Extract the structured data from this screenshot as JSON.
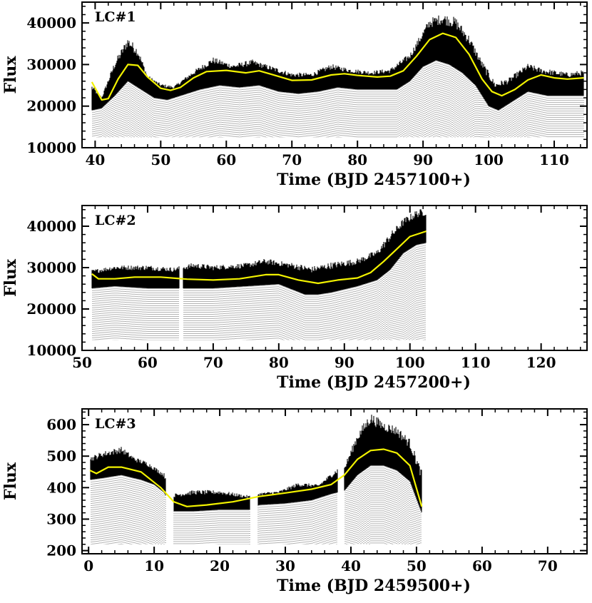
{
  "chart_data": [
    {
      "type": "scatter",
      "label": "LC#1",
      "xlabel": "Time (BJD 2457100+)",
      "ylabel": "Flux",
      "xlim": [
        38,
        115
      ],
      "ylim": [
        10000,
        45000
      ],
      "xticks": [
        40,
        50,
        60,
        70,
        80,
        90,
        100,
        110
      ],
      "yticks": [
        10000,
        20000,
        30000,
        40000
      ],
      "tick_labels_x": [
        "40",
        "50",
        "60",
        "70",
        "80",
        "90",
        "100",
        "110"
      ],
      "tick_labels_y": [
        "10000",
        "20000",
        "30000",
        "40000"
      ],
      "data_range": [
        39.5,
        114.5
      ],
      "gaps": [],
      "floor": 12500,
      "envelope_top": [
        [
          39.5,
          24500
        ],
        [
          41,
          22000
        ],
        [
          43,
          30000
        ],
        [
          45,
          35500
        ],
        [
          46.5,
          33000
        ],
        [
          48,
          27000
        ],
        [
          50,
          25000
        ],
        [
          52,
          24500
        ],
        [
          55,
          28000
        ],
        [
          58,
          31000
        ],
        [
          61,
          29500
        ],
        [
          64,
          30500
        ],
        [
          67,
          29000
        ],
        [
          70,
          27500
        ],
        [
          73,
          27500
        ],
        [
          76,
          29500
        ],
        [
          79,
          28500
        ],
        [
          82,
          28000
        ],
        [
          85,
          28500
        ],
        [
          88,
          32000
        ],
        [
          91,
          40000
        ],
        [
          93,
          41000
        ],
        [
          95,
          40000
        ],
        [
          97,
          36000
        ],
        [
          99,
          30000
        ],
        [
          101,
          25000
        ],
        [
          103,
          26000
        ],
        [
          106,
          29500
        ],
        [
          108,
          28500
        ],
        [
          110,
          28000
        ],
        [
          112,
          27500
        ],
        [
          114.5,
          28000
        ]
      ],
      "envelope_bottom": [
        [
          39.5,
          19000
        ],
        [
          41,
          19500
        ],
        [
          43,
          22500
        ],
        [
          45,
          26000
        ],
        [
          47,
          24000
        ],
        [
          49,
          22000
        ],
        [
          51,
          21500
        ],
        [
          53,
          22500
        ],
        [
          56,
          24000
        ],
        [
          59,
          25000
        ],
        [
          62,
          24500
        ],
        [
          65,
          25000
        ],
        [
          68,
          23500
        ],
        [
          71,
          23000
        ],
        [
          74,
          23500
        ],
        [
          77,
          24500
        ],
        [
          80,
          24000
        ],
        [
          83,
          24000
        ],
        [
          86,
          24000
        ],
        [
          88,
          26000
        ],
        [
          90,
          29500
        ],
        [
          92,
          31000
        ],
        [
          94,
          30000
        ],
        [
          96,
          28000
        ],
        [
          98,
          25000
        ],
        [
          100,
          20000
        ],
        [
          101.5,
          19000
        ],
        [
          103,
          20500
        ],
        [
          106,
          23500
        ],
        [
          109,
          22500
        ],
        [
          112,
          22500
        ],
        [
          114.5,
          22500
        ]
      ],
      "fit": [
        [
          39.5,
          25800
        ],
        [
          41,
          21500
        ],
        [
          42,
          21800
        ],
        [
          43.5,
          26500
        ],
        [
          45,
          30000
        ],
        [
          46.5,
          29800
        ],
        [
          48,
          27000
        ],
        [
          50,
          24300
        ],
        [
          51.5,
          23800
        ],
        [
          53,
          24500
        ],
        [
          55,
          26800
        ],
        [
          57,
          28300
        ],
        [
          60,
          28600
        ],
        [
          63,
          28000
        ],
        [
          65,
          28500
        ],
        [
          67,
          27600
        ],
        [
          70,
          26200
        ],
        [
          73,
          26300
        ],
        [
          76,
          27500
        ],
        [
          78,
          27800
        ],
        [
          80,
          27400
        ],
        [
          83,
          27000
        ],
        [
          85,
          27200
        ],
        [
          87,
          28500
        ],
        [
          89,
          32000
        ],
        [
          91,
          36000
        ],
        [
          93,
          37500
        ],
        [
          95,
          36500
        ],
        [
          97,
          32500
        ],
        [
          99,
          26500
        ],
        [
          100.5,
          23500
        ],
        [
          102,
          22500
        ],
        [
          104,
          24000
        ],
        [
          106,
          26300
        ],
        [
          108,
          27500
        ],
        [
          110,
          26800
        ],
        [
          112,
          26500
        ],
        [
          114.5,
          26800
        ]
      ]
    },
    {
      "type": "scatter",
      "label": "LC#2",
      "xlabel": "Time (BJD 2457200+)",
      "ylabel": "Flux",
      "xlim": [
        50,
        127
      ],
      "ylim": [
        10000,
        45000
      ],
      "xticks": [
        50,
        60,
        70,
        80,
        90,
        100,
        110,
        120
      ],
      "yticks": [
        10000,
        20000,
        30000,
        40000
      ],
      "tick_labels_x": [
        "50",
        "60",
        "70",
        "80",
        "90",
        "100",
        "110",
        "120"
      ],
      "tick_labels_y": [
        "10000",
        "20000",
        "30000",
        "40000"
      ],
      "data_range": [
        51.5,
        102.5
      ],
      "gaps": [
        [
          64.8,
          65.4
        ]
      ],
      "floor": 12500,
      "envelope_top": [
        [
          51.5,
          29000
        ],
        [
          55,
          30000
        ],
        [
          60,
          30000
        ],
        [
          64,
          29500
        ],
        [
          67,
          30500
        ],
        [
          70,
          30000
        ],
        [
          75,
          30500
        ],
        [
          78,
          31500
        ],
        [
          82,
          30500
        ],
        [
          85,
          29500
        ],
        [
          88,
          30500
        ],
        [
          92,
          31500
        ],
        [
          95,
          33500
        ],
        [
          97,
          37500
        ],
        [
          99,
          41000
        ],
        [
          101,
          43000
        ],
        [
          102.5,
          43500
        ]
      ],
      "envelope_bottom": [
        [
          51.5,
          25000
        ],
        [
          55,
          25500
        ],
        [
          60,
          25000
        ],
        [
          65,
          25000
        ],
        [
          70,
          25000
        ],
        [
          75,
          25500
        ],
        [
          80,
          26000
        ],
        [
          84,
          23500
        ],
        [
          86,
          23500
        ],
        [
          88,
          24000
        ],
        [
          92,
          25500
        ],
        [
          95,
          27000
        ],
        [
          97,
          29500
        ],
        [
          99,
          33500
        ],
        [
          101,
          35500
        ],
        [
          102.5,
          36000
        ]
      ],
      "fit": [
        [
          51.5,
          28500
        ],
        [
          52.5,
          27300
        ],
        [
          55,
          27300
        ],
        [
          58,
          27700
        ],
        [
          62,
          27700
        ],
        [
          66,
          27200
        ],
        [
          70,
          27000
        ],
        [
          74,
          27300
        ],
        [
          78,
          28300
        ],
        [
          80,
          28300
        ],
        [
          83,
          27000
        ],
        [
          86,
          26200
        ],
        [
          89,
          27000
        ],
        [
          92,
          27500
        ],
        [
          94,
          28800
        ],
        [
          96,
          31500
        ],
        [
          98,
          34500
        ],
        [
          100,
          37500
        ],
        [
          102.5,
          38800
        ]
      ]
    },
    {
      "type": "scatter",
      "label": "LC#3",
      "xlabel": "Time (BJD 2459500+)",
      "ylabel": "Flux",
      "xlim": [
        -1,
        76
      ],
      "ylim": [
        190,
        650
      ],
      "xticks": [
        0,
        10,
        20,
        30,
        40,
        50,
        60,
        70
      ],
      "yticks": [
        200,
        300,
        400,
        500,
        600
      ],
      "tick_labels_x": [
        "0",
        "10",
        "20",
        "30",
        "40",
        "50",
        "60",
        "70"
      ],
      "tick_labels_y": [
        "200",
        "300",
        "400",
        "500",
        "600"
      ],
      "data_range": [
        0.2,
        50.8
      ],
      "gaps": [
        [
          11.8,
          13.0
        ],
        [
          24.6,
          25.8
        ],
        [
          38.0,
          39.0
        ]
      ],
      "floor": 220,
      "envelope_top": [
        [
          0.2,
          490
        ],
        [
          2,
          505
        ],
        [
          5,
          520
        ],
        [
          7,
          490
        ],
        [
          9,
          475
        ],
        [
          11.5,
          440
        ],
        [
          13,
          375
        ],
        [
          16,
          385
        ],
        [
          20,
          385
        ],
        [
          23,
          375
        ],
        [
          24.5,
          370
        ],
        [
          26,
          380
        ],
        [
          29,
          385
        ],
        [
          32,
          410
        ],
        [
          35,
          405
        ],
        [
          38,
          455
        ],
        [
          39,
          460
        ],
        [
          41,
          560
        ],
        [
          43,
          620
        ],
        [
          45,
          595
        ],
        [
          47,
          580
        ],
        [
          49,
          540
        ],
        [
          50.8,
          440
        ]
      ],
      "envelope_bottom": [
        [
          0.2,
          425
        ],
        [
          2,
          430
        ],
        [
          5,
          440
        ],
        [
          8,
          425
        ],
        [
          10,
          410
        ],
        [
          11.5,
          385
        ],
        [
          13,
          325
        ],
        [
          16,
          325
        ],
        [
          20,
          330
        ],
        [
          24.5,
          330
        ],
        [
          26,
          345
        ],
        [
          30,
          350
        ],
        [
          34,
          360
        ],
        [
          37,
          380
        ],
        [
          39,
          390
        ],
        [
          41,
          440
        ],
        [
          43,
          470
        ],
        [
          45,
          470
        ],
        [
          47,
          455
        ],
        [
          49,
          420
        ],
        [
          50.8,
          320
        ]
      ],
      "fit": [
        [
          0.2,
          455
        ],
        [
          1.2,
          445
        ],
        [
          3,
          465
        ],
        [
          5,
          465
        ],
        [
          8,
          450
        ],
        [
          11,
          400
        ],
        [
          13,
          355
        ],
        [
          15,
          340
        ],
        [
          18,
          345
        ],
        [
          22,
          355
        ],
        [
          26,
          372
        ],
        [
          30,
          383
        ],
        [
          34,
          395
        ],
        [
          37,
          410
        ],
        [
          39,
          440
        ],
        [
          41,
          490
        ],
        [
          43,
          518
        ],
        [
          45,
          522
        ],
        [
          47,
          510
        ],
        [
          49,
          470
        ],
        [
          50.8,
          340
        ]
      ]
    }
  ]
}
